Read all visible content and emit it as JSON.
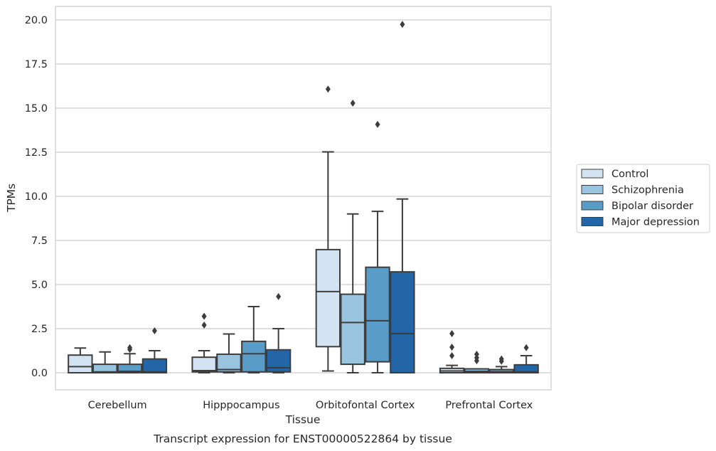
{
  "caption": "Transcript expression for ENST00000522864 by tissue",
  "chart_data": {
    "type": "boxplot",
    "xlabel": "Tissue",
    "ylabel": "TPMs",
    "ylim": [
      -0.95,
      20.75
    ],
    "yticks": [
      0.0,
      2.5,
      5.0,
      7.5,
      10.0,
      12.5,
      15.0,
      17.5,
      20.0
    ],
    "ytick_labels": [
      "0.0",
      "2.5",
      "5.0",
      "7.5",
      "10.0",
      "12.5",
      "15.0",
      "17.5",
      "20.0"
    ],
    "grid": "horizontal",
    "legend_position": "right",
    "categories": [
      "Cerebellum",
      "Hipppocampus",
      "Orbitofontal Cortex",
      "Prefrontal Cortex"
    ],
    "series": [
      {
        "name": "Control",
        "color": "#d4e3f2",
        "boxes": [
          {
            "whislo": 0.0,
            "q1": 0.0,
            "med": 0.35,
            "q3": 1.0,
            "whishi": 1.4,
            "fliers": []
          },
          {
            "whislo": 0.0,
            "q1": 0.05,
            "med": 0.12,
            "q3": 0.88,
            "whishi": 1.25,
            "fliers": [
              2.7,
              3.2
            ]
          },
          {
            "whislo": 0.1,
            "q1": 1.48,
            "med": 4.6,
            "q3": 6.98,
            "whishi": 12.52,
            "fliers": [
              16.08
            ]
          },
          {
            "whislo": 0.0,
            "q1": 0.0,
            "med": 0.1,
            "q3": 0.25,
            "whishi": 0.42,
            "fliers": [
              0.97,
              1.45,
              2.22
            ]
          }
        ]
      },
      {
        "name": "Schizophrenia",
        "color": "#99c4e0",
        "boxes": [
          {
            "whislo": 0.0,
            "q1": 0.0,
            "med": 0.05,
            "q3": 0.48,
            "whishi": 1.18,
            "fliers": []
          },
          {
            "whislo": 0.0,
            "q1": 0.05,
            "med": 0.18,
            "q3": 1.05,
            "whishi": 2.2,
            "fliers": []
          },
          {
            "whislo": 0.0,
            "q1": 0.48,
            "med": 2.85,
            "q3": 4.45,
            "whishi": 9.0,
            "fliers": [
              15.28
            ]
          },
          {
            "whislo": 0.0,
            "q1": 0.0,
            "med": 0.08,
            "q3": 0.22,
            "whishi": 0.22,
            "fliers": [
              0.68,
              0.85,
              1.05
            ]
          }
        ]
      },
      {
        "name": "Bipolar disorder",
        "color": "#5a9cc8",
        "boxes": [
          {
            "whislo": 0.0,
            "q1": 0.0,
            "med": 0.08,
            "q3": 0.48,
            "whishi": 1.08,
            "fliers": [
              1.32,
              1.42
            ]
          },
          {
            "whislo": 0.0,
            "q1": 0.05,
            "med": 1.08,
            "q3": 1.78,
            "whishi": 3.75,
            "fliers": []
          },
          {
            "whislo": 0.0,
            "q1": 0.62,
            "med": 2.95,
            "q3": 5.98,
            "whishi": 9.15,
            "fliers": [
              14.08
            ]
          },
          {
            "whislo": 0.0,
            "q1": 0.0,
            "med": 0.05,
            "q3": 0.18,
            "whishi": 0.35,
            "fliers": [
              0.65,
              0.78
            ]
          }
        ]
      },
      {
        "name": "Major depression",
        "color": "#2266a8",
        "boxes": [
          {
            "whislo": 0.0,
            "q1": 0.0,
            "med": 0.05,
            "q3": 0.78,
            "whishi": 1.25,
            "fliers": [
              2.38
            ]
          },
          {
            "whislo": 0.0,
            "q1": 0.05,
            "med": 0.28,
            "q3": 1.3,
            "whishi": 2.5,
            "fliers": [
              4.32
            ]
          },
          {
            "whislo": 0.0,
            "q1": 0.0,
            "med": 2.22,
            "q3": 5.72,
            "whishi": 9.85,
            "fliers": [
              19.75
            ]
          },
          {
            "whislo": 0.0,
            "q1": 0.0,
            "med": 0.05,
            "q3": 0.45,
            "whishi": 0.97,
            "fliers": [
              1.42
            ]
          }
        ]
      }
    ]
  }
}
